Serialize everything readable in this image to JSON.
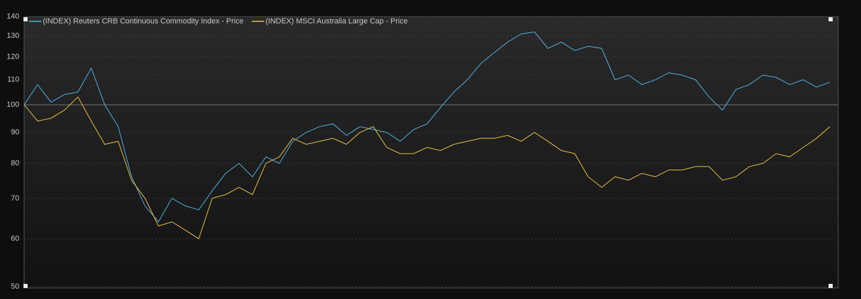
{
  "chart_data": {
    "type": "line",
    "log_scale": true,
    "grid": true,
    "ylim": [
      50,
      140
    ],
    "yticks": [
      50,
      60,
      70,
      80,
      90,
      100,
      110,
      120,
      130,
      140
    ],
    "series": [
      {
        "name": "(INDEX) Reuters CRB Continuous Commodity Index - Price",
        "color": "#4fb3e8",
        "values": [
          100,
          108,
          101,
          104,
          105,
          115,
          100,
          92,
          76,
          68,
          64,
          70,
          68,
          67,
          72,
          77,
          80,
          76,
          82,
          80,
          87,
          90,
          92,
          93,
          89,
          92,
          91,
          90,
          87,
          91,
          93,
          99,
          105,
          110,
          117,
          122,
          127,
          131,
          132,
          124,
          127,
          123,
          125,
          124,
          110,
          112,
          108,
          110,
          113,
          112,
          110,
          103,
          98,
          106,
          108,
          112,
          111,
          108,
          110,
          107,
          109
        ]
      },
      {
        "name": "(INDEX) MSCI Australia Large Cap - Price",
        "color": "#e8c040",
        "values": [
          100,
          94,
          95,
          98,
          103,
          94,
          86,
          87,
          75,
          70,
          63,
          64,
          62,
          60,
          70,
          71,
          73,
          71,
          80,
          82,
          88,
          86,
          87,
          88,
          86,
          90,
          92,
          85,
          83,
          83,
          85,
          84,
          86,
          87,
          88,
          88,
          89,
          87,
          90,
          87,
          84,
          83,
          76,
          73,
          76,
          75,
          77,
          76,
          78,
          78,
          79,
          79,
          75,
          76,
          79,
          80,
          83,
          82,
          85,
          88,
          92
        ]
      }
    ]
  }
}
